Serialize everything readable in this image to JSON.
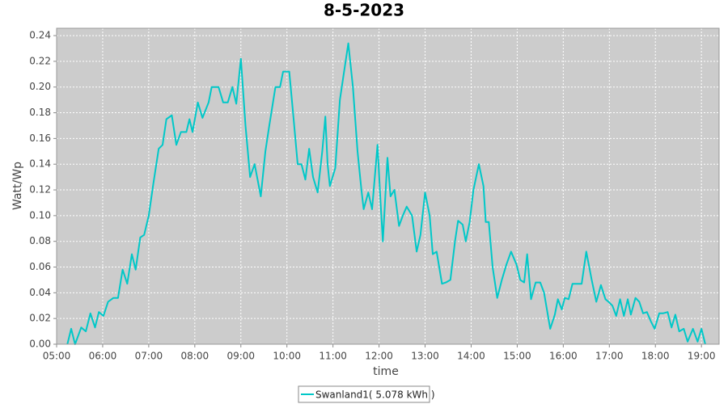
{
  "chart_data": {
    "type": "line",
    "title": "8-5-2023",
    "x_label": "time",
    "y_label": "Watt/Wp",
    "x": [
      "05:14",
      "05:19",
      "05:24",
      "05:32",
      "05:38",
      "05:44",
      "05:50",
      "05:55",
      "06:01",
      "06:07",
      "06:14",
      "06:20",
      "06:26",
      "06:32",
      "06:38",
      "06:43",
      "06:49",
      "06:54",
      "07:00",
      "07:06",
      "07:13",
      "07:18",
      "07:23",
      "07:30",
      "07:36",
      "07:42",
      "07:49",
      "07:53",
      "07:57",
      "08:04",
      "08:10",
      "08:18",
      "08:22",
      "08:31",
      "08:37",
      "08:43",
      "08:49",
      "08:54",
      "09:00",
      "09:06",
      "09:12",
      "09:18",
      "09:26",
      "09:32",
      "09:37",
      "09:45",
      "09:51",
      "09:55",
      "10:03",
      "10:08",
      "10:14",
      "10:19",
      "10:24",
      "10:29",
      "10:34",
      "10:40",
      "10:46",
      "10:50",
      "10:53",
      "10:56",
      "11:03",
      "11:09",
      "11:14",
      "11:20",
      "11:26",
      "11:32",
      "11:37",
      "11:40",
      "11:46",
      "11:51",
      "11:58",
      "12:02",
      "12:05",
      "12:11",
      "12:15",
      "12:20",
      "12:26",
      "12:31",
      "12:36",
      "12:43",
      "12:49",
      "12:54",
      "13:00",
      "13:06",
      "13:10",
      "13:15",
      "13:22",
      "13:27",
      "13:33",
      "13:39",
      "13:43",
      "13:49",
      "13:53",
      "13:58",
      "14:03",
      "14:10",
      "14:16",
      "14:19",
      "14:23",
      "14:28",
      "14:34",
      "14:40",
      "14:46",
      "14:52",
      "14:59",
      "15:04",
      "15:09",
      "15:13",
      "15:18",
      "15:24",
      "15:30",
      "15:35",
      "15:43",
      "15:49",
      "15:53",
      "15:58",
      "16:02",
      "16:07",
      "16:12",
      "16:19",
      "16:24",
      "16:30",
      "16:37",
      "16:43",
      "16:49",
      "16:55",
      "16:59",
      "17:04",
      "17:09",
      "17:14",
      "17:19",
      "17:24",
      "17:28",
      "17:34",
      "17:39",
      "17:44",
      "17:49",
      "17:54",
      "17:59",
      "18:05",
      "18:10",
      "18:16",
      "18:21",
      "18:26",
      "18:31",
      "18:37",
      "18:42",
      "18:49",
      "18:55",
      "19:00",
      "19:05"
    ],
    "series": [
      {
        "name": "Swanland1( 5.078 kWh )",
        "color": "#00c8c8",
        "values": [
          0,
          0.012,
          0,
          0.013,
          0.01,
          0.024,
          0.013,
          0.025,
          0.022,
          0.033,
          0.036,
          0.036,
          0.058,
          0.047,
          0.07,
          0.058,
          0.083,
          0.085,
          0.1,
          0.125,
          0.152,
          0.155,
          0.175,
          0.178,
          0.155,
          0.165,
          0.165,
          0.175,
          0.165,
          0.188,
          0.176,
          0.188,
          0.2,
          0.2,
          0.188,
          0.188,
          0.2,
          0.187,
          0.222,
          0.17,
          0.13,
          0.14,
          0.115,
          0.15,
          0.17,
          0.2,
          0.2,
          0.212,
          0.212,
          0.18,
          0.14,
          0.14,
          0.128,
          0.152,
          0.13,
          0.118,
          0.15,
          0.177,
          0.14,
          0.123,
          0.137,
          0.19,
          0.21,
          0.234,
          0.2,
          0.15,
          0.12,
          0.105,
          0.118,
          0.105,
          0.155,
          0.11,
          0.08,
          0.145,
          0.115,
          0.12,
          0.092,
          0.1,
          0.107,
          0.1,
          0.072,
          0.085,
          0.118,
          0.1,
          0.07,
          0.072,
          0.047,
          0.048,
          0.05,
          0.08,
          0.096,
          0.093,
          0.08,
          0.095,
          0.12,
          0.14,
          0.123,
          0.095,
          0.095,
          0.06,
          0.036,
          0.05,
          0.062,
          0.072,
          0.062,
          0.05,
          0.048,
          0.07,
          0.035,
          0.048,
          0.048,
          0.04,
          0.012,
          0.023,
          0.035,
          0.027,
          0.036,
          0.035,
          0.047,
          0.047,
          0.047,
          0.072,
          0.05,
          0.033,
          0.046,
          0.035,
          0.033,
          0.03,
          0.022,
          0.035,
          0.022,
          0.035,
          0.023,
          0.036,
          0.033,
          0.024,
          0.025,
          0.018,
          0.012,
          0.024,
          0.024,
          0.025,
          0.013,
          0.023,
          0.01,
          0.012,
          0.002,
          0.012,
          0.002,
          0.012,
          0
        ]
      }
    ],
    "xlim": [
      "05:00",
      "19:23"
    ],
    "xticks": [
      "05:00",
      "06:00",
      "07:00",
      "08:00",
      "09:00",
      "10:00",
      "11:00",
      "12:00",
      "13:00",
      "14:00",
      "15:00",
      "16:00",
      "17:00",
      "18:00",
      "19:00"
    ],
    "ylim": [
      0,
      0.2457
    ],
    "yticks": [
      {
        "value": 0,
        "label": "0.00"
      },
      {
        "value": 0.02,
        "label": "0.02"
      },
      {
        "value": 0.04,
        "label": "0.04"
      },
      {
        "value": 0.06,
        "label": "0.06"
      },
      {
        "value": 0.08,
        "label": "0.08"
      },
      {
        "value": 0.1,
        "label": "0.10"
      },
      {
        "value": 0.12,
        "label": "0.12"
      },
      {
        "value": 0.14,
        "label": "0.14"
      },
      {
        "value": 0.16,
        "label": "0.16"
      },
      {
        "value": 0.18,
        "label": "0.18"
      },
      {
        "value": 0.2,
        "label": "0.20"
      },
      {
        "value": 0.22,
        "label": "0.22"
      },
      {
        "value": 0.24,
        "label": "0.24"
      }
    ],
    "grid": true,
    "legend": "bottom"
  }
}
